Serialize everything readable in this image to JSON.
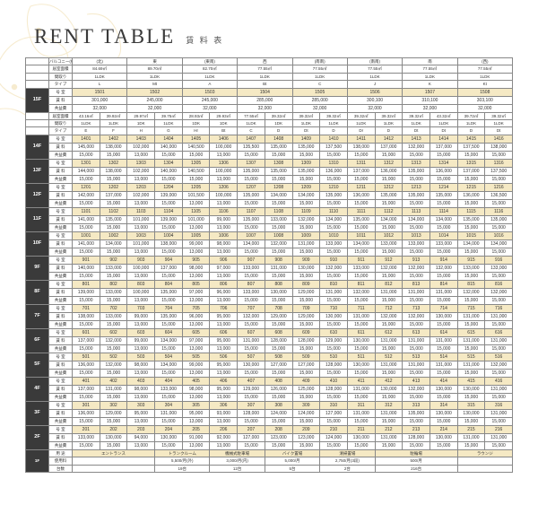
{
  "title_en": "RENT TABLE",
  "title_jp": "賃 料 表",
  "colors": {
    "highlight": "#f5e9c4",
    "dark": "#3a3a3a",
    "ornament": "#e8c878",
    "border": "#888888",
    "text": "#333333",
    "bg": "#ffffff"
  },
  "header_rows": {
    "balcony_label": "バルコニー(約)",
    "balcony": [
      "(北)",
      "",
      "東",
      "",
      "(東南)",
      "",
      "西",
      "",
      "(南南)",
      "",
      "(南南)",
      "",
      "南",
      "",
      "(西)"
    ],
    "area_label": "居室面積",
    "area": [
      "84.69㎡",
      "",
      "89.70㎡",
      "",
      "82.70㎡",
      "",
      "77.55㎡",
      "",
      "77.55㎡",
      "",
      "77.55㎡",
      "",
      "77.55㎡",
      "",
      "77.55㎡"
    ],
    "layout_label": "間取り",
    "layout": [
      "1LDK",
      "",
      "1LDK",
      "",
      "1LDK",
      "",
      "1LDK",
      "",
      "1LDK",
      "",
      "1LDK",
      "",
      "1LDK",
      "",
      "1LDK"
    ],
    "type_label": "タイプ",
    "type": [
      "L",
      "",
      "Mt",
      "",
      "A",
      "",
      "Bt",
      "",
      "C",
      "",
      "J",
      "",
      "K",
      "",
      "Kt"
    ]
  },
  "f15": {
    "unit_label": "号 室",
    "units": [
      "1501",
      "",
      "1502",
      "",
      "1503",
      "",
      "1504",
      "",
      "1505",
      "",
      "1506",
      "",
      "1507",
      "",
      "1508"
    ],
    "rent_label": "賃 料",
    "rents": [
      "301,000",
      "",
      "245,000",
      "",
      "245,000",
      "",
      "285,000",
      "",
      "285,000",
      "",
      "300,100",
      "",
      "310,100",
      "",
      "303,100"
    ],
    "fee_label": "共益費",
    "fees": [
      "32,000",
      "",
      "32,000",
      "",
      "32,000",
      "",
      "32,000",
      "",
      "32,000",
      "",
      "32,000",
      "",
      "32,000",
      "",
      "32,000"
    ]
  },
  "mid_header": {
    "area_label": "居室面積",
    "area": [
      "43.16㎡",
      "39.92㎡",
      "29.97㎡",
      "39.75㎡",
      "28.93㎡",
      "29.93㎡",
      "77.55㎡",
      "39.32㎡",
      "39.32㎡",
      "39.32㎡",
      "39.32㎡",
      "39.32㎡",
      "39.32㎡",
      "43.32㎡",
      "39.72㎡",
      "39.32㎡"
    ],
    "layout_label": "間取り",
    "layout": [
      "1LDK",
      "1LDK",
      "1DK",
      "1LDK",
      "1DK",
      "1DK",
      "1LDK",
      "1DK",
      "1LDK",
      "1LDK",
      "1LDK",
      "1LDK",
      "1LDK",
      "1LDK",
      "1LDK",
      "1LDK"
    ],
    "type_label": "タイプ",
    "type": [
      "E",
      "F",
      "H",
      "G",
      "Hr",
      "Bt",
      "C",
      "D",
      "Dt",
      "D",
      "Dr",
      "D",
      "Dt",
      "Dt",
      "D",
      "Dt"
    ]
  },
  "floors": [
    {
      "n": "14F",
      "label": "号 室",
      "units": [
        "1401",
        "1402",
        "1403",
        "1404",
        "1405",
        "1406",
        "1407",
        "1408",
        "1409",
        "1410",
        "1411",
        "1412",
        "1413",
        "1414",
        "1415",
        "1416"
      ],
      "rent_label": "賃 料",
      "rents": [
        "145,000",
        "138,000",
        "102,000",
        "140,000",
        "140,500",
        "100,000",
        "135,500",
        "135,000",
        "135,000",
        "137,500",
        "138,000",
        "137,000",
        "132,000",
        "137,000",
        "137,500",
        "138,000"
      ],
      "fee_label": "共益費",
      "fees": [
        "15,000",
        "15,000",
        "13,000",
        "15,000",
        "15,000",
        "13,000",
        "15,000",
        "15,000",
        "15,000",
        "15,000",
        "15,000",
        "15,000",
        "15,000",
        "15,000",
        "15,000",
        "15,000"
      ]
    },
    {
      "n": "13F",
      "label": "号 室",
      "units": [
        "1301",
        "1302",
        "1303",
        "1304",
        "1305",
        "1306",
        "1307",
        "1308",
        "1309",
        "1310",
        "1311",
        "1312",
        "1313",
        "1314",
        "1315",
        "1316"
      ],
      "rent_label": "賃 料",
      "rents": [
        "144,000",
        "138,000",
        "102,000",
        "140,000",
        "140,500",
        "100,000",
        "135,000",
        "135,000",
        "135,000",
        "136,000",
        "137,000",
        "136,000",
        "135,000",
        "136,000",
        "137,000",
        "137,500"
      ],
      "fee_label": "共益費",
      "fees": [
        "15,000",
        "15,000",
        "13,000",
        "15,000",
        "15,000",
        "13,000",
        "15,000",
        "15,000",
        "15,000",
        "15,000",
        "15,000",
        "15,000",
        "15,000",
        "15,000",
        "15,000",
        "15,000"
      ]
    },
    {
      "n": "12F",
      "label": "号 室",
      "units": [
        "1201",
        "1202",
        "1203",
        "1204",
        "1205",
        "1206",
        "1207",
        "1208",
        "1209",
        "1210",
        "1211",
        "1212",
        "1213",
        "1214",
        "1215",
        "1216"
      ],
      "rent_label": "賃 料",
      "rents": [
        "142,000",
        "137,000",
        "102,000",
        "139,000",
        "101,500",
        "100,000",
        "135,000",
        "134,000",
        "134,000",
        "135,000",
        "136,000",
        "135,000",
        "135,000",
        "135,000",
        "136,000",
        "136,500"
      ],
      "fee_label": "共益費",
      "fees": [
        "15,000",
        "15,000",
        "13,000",
        "15,000",
        "13,000",
        "13,000",
        "15,000",
        "15,000",
        "15,000",
        "15,000",
        "15,000",
        "15,000",
        "15,000",
        "15,000",
        "15,000",
        "15,000"
      ]
    },
    {
      "n": "11F",
      "label": "号 室",
      "units": [
        "1101",
        "1102",
        "1103",
        "1104",
        "1105",
        "1106",
        "1107",
        "1108",
        "1109",
        "1110",
        "1111",
        "1112",
        "1113",
        "1114",
        "1115",
        "1116"
      ],
      "rent_label": "賃 料",
      "rents": [
        "141,000",
        "135,000",
        "101,000",
        "139,000",
        "101,000",
        "99,000",
        "135,000",
        "133,000",
        "132,000",
        "134,000",
        "135,000",
        "134,000",
        "134,000",
        "134,000",
        "135,000",
        "135,000"
      ],
      "fee_label": "共益費",
      "fees": [
        "15,000",
        "15,000",
        "13,000",
        "15,000",
        "13,000",
        "13,000",
        "15,000",
        "15,000",
        "15,000",
        "15,000",
        "15,000",
        "15,000",
        "15,000",
        "15,000",
        "15,000",
        "15,000"
      ]
    },
    {
      "n": "10F",
      "label": "号 室",
      "units": [
        "1001",
        "1002",
        "1003",
        "1004",
        "1005",
        "1006",
        "1007",
        "1008",
        "1009",
        "1010",
        "1011",
        "1012",
        "1013",
        "1014",
        "1015",
        "1016"
      ],
      "rent_label": "賃 料",
      "rents": [
        "141,000",
        "134,000",
        "101,000",
        "138,000",
        "99,000",
        "98,000",
        "134,000",
        "132,000",
        "131,000",
        "133,000",
        "134,000",
        "133,000",
        "133,000",
        "133,000",
        "134,000",
        "134,000"
      ],
      "fee_label": "共益費",
      "fees": [
        "15,000",
        "15,000",
        "13,000",
        "15,000",
        "13,000",
        "13,000",
        "15,000",
        "15,000",
        "15,000",
        "15,000",
        "15,000",
        "15,000",
        "15,000",
        "15,000",
        "15,000",
        "15,000"
      ]
    },
    {
      "n": "9F",
      "label": "号 室",
      "units": [
        "901",
        "902",
        "903",
        "904",
        "905",
        "906",
        "907",
        "908",
        "909",
        "910",
        "911",
        "912",
        "913",
        "914",
        "915",
        "916"
      ],
      "rent_label": "賃 料",
      "rents": [
        "140,000",
        "133,000",
        "100,000",
        "137,000",
        "98,000",
        "97,000",
        "133,000",
        "131,000",
        "130,000",
        "132,000",
        "133,000",
        "132,000",
        "132,000",
        "132,000",
        "133,000",
        "133,000"
      ],
      "fee_label": "共益費",
      "fees": [
        "15,000",
        "15,000",
        "13,000",
        "15,000",
        "13,000",
        "13,000",
        "15,000",
        "15,000",
        "15,000",
        "15,000",
        "15,000",
        "15,000",
        "15,000",
        "15,000",
        "15,000",
        "15,000"
      ]
    },
    {
      "n": "8F",
      "label": "号 室",
      "units": [
        "801",
        "802",
        "803",
        "804",
        "805",
        "806",
        "807",
        "808",
        "809",
        "810",
        "811",
        "812",
        "813",
        "814",
        "815",
        "816"
      ],
      "rent_label": "賃 料",
      "rents": [
        "139,000",
        "133,000",
        "100,000",
        "135,000",
        "97,000",
        "96,000",
        "133,000",
        "130,000",
        "129,000",
        "131,000",
        "132,000",
        "131,000",
        "131,000",
        "131,000",
        "132,000",
        "132,000"
      ],
      "fee_label": "共益費",
      "fees": [
        "15,000",
        "15,000",
        "13,000",
        "15,000",
        "13,000",
        "13,000",
        "15,000",
        "15,000",
        "15,000",
        "15,000",
        "15,000",
        "15,000",
        "15,000",
        "15,000",
        "15,000",
        "15,000"
      ]
    },
    {
      "n": "7F",
      "label": "号 室",
      "units": [
        "701",
        "702",
        "703",
        "704",
        "705",
        "706",
        "707",
        "708",
        "709",
        "710",
        "711",
        "712",
        "713",
        "714",
        "715",
        "716"
      ],
      "rent_label": "賃 料",
      "rents": [
        "138,000",
        "133,000",
        "99,000",
        "135,000",
        "96,000",
        "95,000",
        "132,000",
        "129,000",
        "129,000",
        "130,000",
        "131,000",
        "132,000",
        "132,000",
        "130,000",
        "131,000",
        "131,000"
      ],
      "fee_label": "共益費",
      "fees": [
        "15,000",
        "15,000",
        "13,000",
        "15,000",
        "13,000",
        "13,000",
        "15,000",
        "15,000",
        "15,000",
        "15,000",
        "15,000",
        "15,000",
        "15,000",
        "15,000",
        "15,000",
        "15,000"
      ]
    },
    {
      "n": "6F",
      "label": "号 室",
      "units": [
        "601",
        "602",
        "603",
        "604",
        "605",
        "606",
        "607",
        "608",
        "609",
        "610",
        "611",
        "612",
        "613",
        "614",
        "615",
        "616"
      ],
      "rent_label": "賃 料",
      "rents": [
        "137,000",
        "132,000",
        "99,000",
        "134,000",
        "97,000",
        "95,000",
        "131,000",
        "128,000",
        "128,000",
        "129,000",
        "130,000",
        "131,000",
        "131,000",
        "131,000",
        "131,000",
        "131,000"
      ],
      "fee_label": "共益費",
      "fees": [
        "15,000",
        "15,000",
        "13,000",
        "15,000",
        "13,000",
        "13,000",
        "15,000",
        "15,000",
        "15,000",
        "15,000",
        "15,000",
        "15,000",
        "15,000",
        "15,000",
        "15,000",
        "15,000"
      ]
    },
    {
      "n": "5F",
      "label": "号 室",
      "units": [
        "501",
        "502",
        "503",
        "504",
        "505",
        "506",
        "507",
        "508",
        "509",
        "510",
        "511",
        "512",
        "513",
        "514",
        "515",
        "516"
      ],
      "rent_label": "賃 料",
      "rents": [
        "136,000",
        "132,000",
        "98,000",
        "134,000",
        "99,000",
        "95,000",
        "130,000",
        "127,000",
        "127,000",
        "128,000",
        "130,000",
        "131,000",
        "131,000",
        "131,000",
        "131,000",
        "132,000"
      ],
      "fee_label": "共益費",
      "fees": [
        "15,000",
        "15,000",
        "13,000",
        "15,000",
        "13,000",
        "13,000",
        "15,000",
        "15,000",
        "15,000",
        "15,000",
        "15,000",
        "15,000",
        "15,000",
        "15,000",
        "15,000",
        "15,000"
      ]
    },
    {
      "n": "4F",
      "label": "号 室",
      "units": [
        "401",
        "402",
        "403",
        "404",
        "405",
        "406",
        "407",
        "408",
        "409",
        "410",
        "411",
        "412",
        "413",
        "414",
        "415",
        "416"
      ],
      "rent_label": "賃 料",
      "rents": [
        "137,000",
        "131,000",
        "98,000",
        "133,000",
        "98,000",
        "95,000",
        "129,000",
        "126,000",
        "125,000",
        "128,000",
        "131,000",
        "130,000",
        "132,000",
        "130,000",
        "130,000",
        "131,000"
      ],
      "fee_label": "共益費",
      "fees": [
        "15,000",
        "15,000",
        "13,000",
        "15,000",
        "13,000",
        "13,000",
        "15,000",
        "15,000",
        "15,000",
        "15,000",
        "15,000",
        "15,000",
        "15,000",
        "15,000",
        "15,000",
        "15,000"
      ]
    },
    {
      "n": "3F",
      "label": "号 室",
      "units": [
        "301",
        "302",
        "303",
        "304",
        "305",
        "306",
        "307",
        "308",
        "309",
        "310",
        "311",
        "312",
        "313",
        "314",
        "315",
        "316"
      ],
      "rent_label": "賃 料",
      "rents": [
        "136,000",
        "129,000",
        "95,000",
        "131,000",
        "95,000",
        "93,000",
        "128,000",
        "124,000",
        "124,000",
        "127,000",
        "131,000",
        "131,000",
        "135,000",
        "130,000",
        "130,000",
        "131,000"
      ],
      "fee_label": "共益費",
      "fees": [
        "15,000",
        "15,000",
        "13,000",
        "15,000",
        "13,000",
        "13,000",
        "15,000",
        "15,000",
        "15,000",
        "15,000",
        "15,000",
        "15,000",
        "15,000",
        "15,000",
        "15,000",
        "15,000"
      ]
    },
    {
      "n": "2F",
      "label": "号 室",
      "units": [
        "201",
        "202",
        "203",
        "204",
        "205",
        "206",
        "207",
        "208",
        "209",
        "210",
        "211",
        "212",
        "213",
        "214",
        "215",
        "216"
      ],
      "rent_label": "賃 料",
      "rents": [
        "133,000",
        "130,000",
        "94,000",
        "130,000",
        "91,000",
        "92,000",
        "127,000",
        "123,000",
        "123,000",
        "124,000",
        "130,000",
        "131,000",
        "128,000",
        "130,000",
        "131,000",
        "131,000"
      ],
      "fee_label": "共益費",
      "fees": [
        "15,000",
        "15,000",
        "13,000",
        "15,000",
        "13,000",
        "13,000",
        "15,000",
        "15,000",
        "15,000",
        "15,000",
        "15,000",
        "15,000",
        "15,000",
        "15,000",
        "15,000",
        "15,000"
      ]
    }
  ],
  "f1": {
    "floor": "1F",
    "row1_label": "用 途",
    "row1": [
      "エントランス",
      "トランクルーム",
      "機械式駐車場",
      "バイク置場",
      "清掃置場",
      "駐輪場",
      "ラウンジ"
    ],
    "row2_label": "使用料",
    "row2": [
      "",
      "5,500/月(外)",
      "3,000/月(内)",
      "5,000/月",
      "2,750/月(3段)",
      "500/月",
      ""
    ],
    "row3_label": "台数",
    "row3": [
      "",
      "19台",
      "12台",
      "5台",
      "2台",
      "216台",
      ""
    ]
  }
}
